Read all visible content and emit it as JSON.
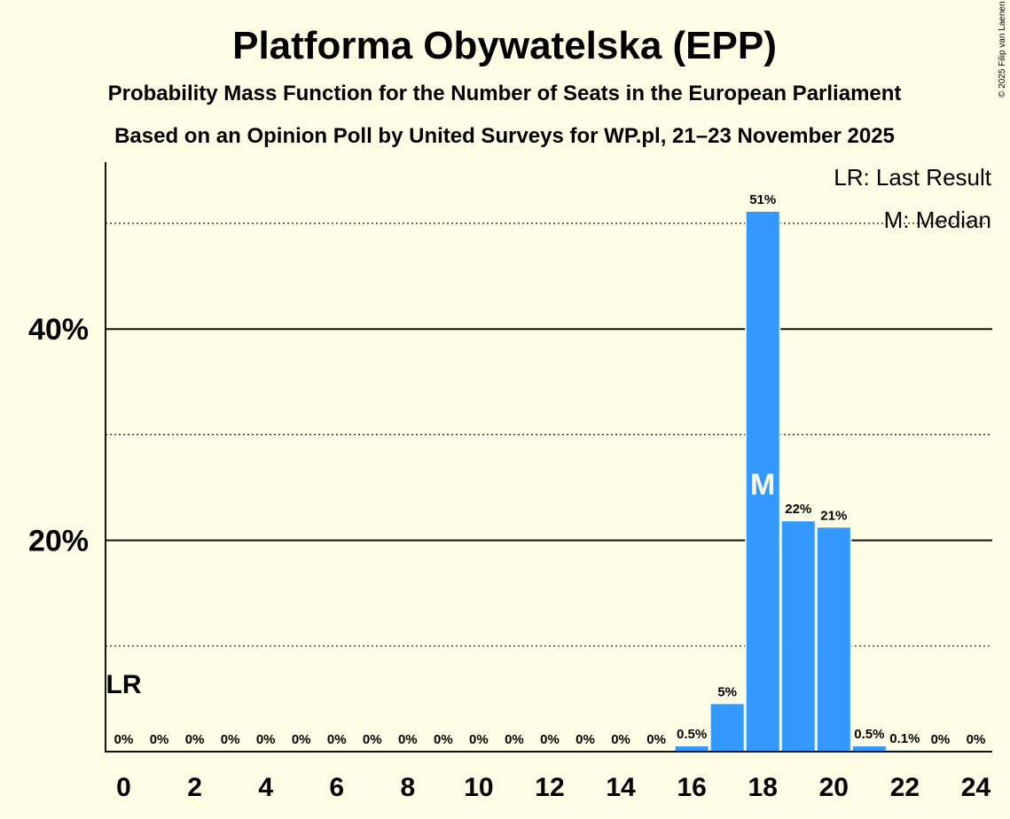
{
  "copyright": "© 2025 Filip van Laenen",
  "chart_data": {
    "type": "bar",
    "title": "Platforma Obywatelska (EPP)",
    "subtitle1": "Probability Mass Function for the Number of Seats in the European Parliament",
    "subtitle2": "Based on an Opinion Poll by United Surveys for WP.pl, 21–23 November 2025",
    "xlabel": "",
    "ylabel": "",
    "ylim": [
      0,
      55
    ],
    "grid_major": [
      20,
      40
    ],
    "grid_minor": [
      10,
      30,
      50
    ],
    "ytick_labels": [
      {
        "value": 20,
        "label": "20%"
      },
      {
        "value": 40,
        "label": "40%"
      }
    ],
    "xtick_labels": [
      "0",
      "2",
      "4",
      "6",
      "8",
      "10",
      "12",
      "14",
      "16",
      "18",
      "20",
      "22",
      "24"
    ],
    "categories": [
      0,
      1,
      2,
      3,
      4,
      5,
      6,
      7,
      8,
      9,
      10,
      11,
      12,
      13,
      14,
      15,
      16,
      17,
      18,
      19,
      20,
      21,
      22,
      23,
      24
    ],
    "values": [
      0,
      0,
      0,
      0,
      0,
      0,
      0,
      0,
      0,
      0,
      0,
      0,
      0,
      0,
      0,
      0,
      0.5,
      4.5,
      51.1,
      21.8,
      21.2,
      0.5,
      0.1,
      0,
      0
    ],
    "value_labels": [
      "0%",
      "0%",
      "0%",
      "0%",
      "0%",
      "0%",
      "0%",
      "0%",
      "0%",
      "0%",
      "0%",
      "0%",
      "0%",
      "0%",
      "0%",
      "0%",
      "0.5%",
      "5%",
      "51%",
      "22%",
      "21%",
      "0.5%",
      "0.1%",
      "0%",
      "0%"
    ],
    "bar_color": "#3399ff",
    "last_result": {
      "seat": 0,
      "label": "LR"
    },
    "median": {
      "seat": 18,
      "label": "M"
    },
    "legend": [
      "LR: Last Result",
      "M: Median"
    ]
  }
}
